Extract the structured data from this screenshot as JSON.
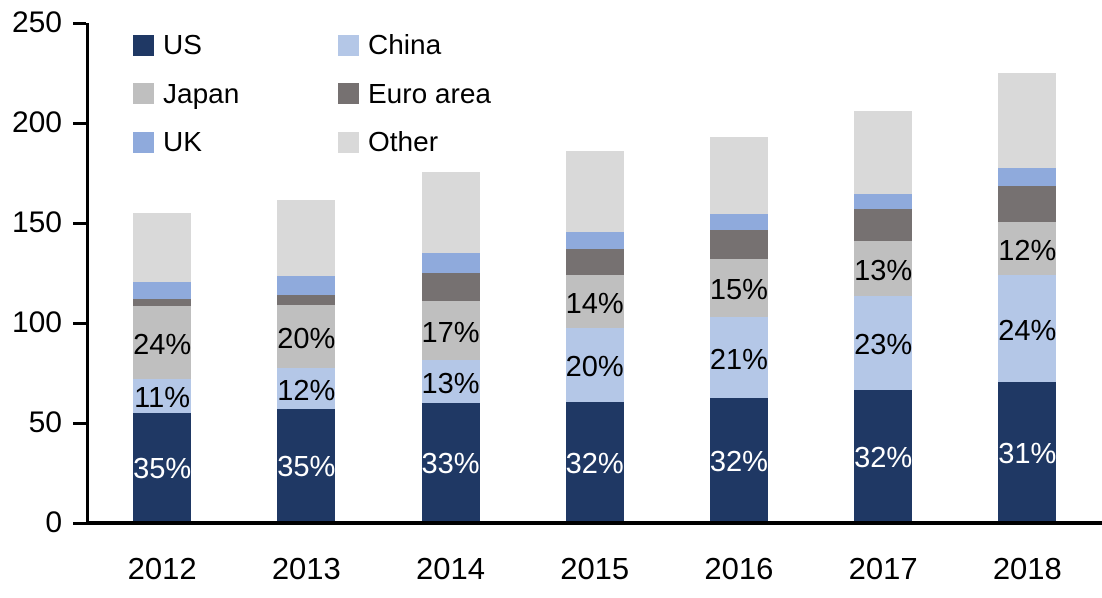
{
  "chart_data": {
    "type": "bar",
    "stacked": true,
    "title": "",
    "xlabel": "",
    "ylabel": "",
    "categories": [
      "2012",
      "2013",
      "2014",
      "2015",
      "2016",
      "2017",
      "2018"
    ],
    "ylim": [
      0,
      250
    ],
    "yticks": [
      "0",
      "50",
      "100",
      "150",
      "200",
      "250"
    ],
    "grid": false,
    "axis_color": "#000000",
    "series": [
      {
        "id": "us",
        "name": "US",
        "color": "#1F3864",
        "values": [
          54,
          56,
          59,
          59.5,
          61.5,
          65.5,
          69.5
        ],
        "labels": [
          "35%",
          "35%",
          "33%",
          "32%",
          "32%",
          "32%",
          "31%"
        ],
        "label_color": "#FFFFFF"
      },
      {
        "id": "china",
        "name": "China",
        "color": "#B4C7E7",
        "values": [
          17,
          20.5,
          21.5,
          37,
          40.5,
          47,
          53.5
        ],
        "labels": [
          "11%",
          "12%",
          "13%",
          "20%",
          "21%",
          "23%",
          "24%"
        ],
        "label_color": "#000000"
      },
      {
        "id": "japan",
        "name": "Japan",
        "color": "#BFBFBF",
        "values": [
          36.5,
          31.5,
          29.5,
          26.5,
          29,
          27.5,
          26.5
        ],
        "labels": [
          "24%",
          "20%",
          "17%",
          "14%",
          "15%",
          "13%",
          "12%"
        ],
        "label_color": "#000000"
      },
      {
        "id": "euro_area",
        "name": "Euro area",
        "color": "#767171",
        "values": [
          3.5,
          5,
          14,
          13,
          14.5,
          16,
          18
        ],
        "labels": null,
        "label_color": null
      },
      {
        "id": "uk",
        "name": "UK",
        "color": "#8FAADC",
        "values": [
          8.5,
          9.5,
          10,
          8.5,
          8,
          7.5,
          9
        ],
        "labels": null,
        "label_color": null
      },
      {
        "id": "other",
        "name": "Other",
        "color": "#D9D9D9",
        "values": [
          34.5,
          38,
          40.5,
          40.5,
          38.5,
          41.5,
          47.5
        ],
        "labels": null,
        "label_color": null
      }
    ],
    "totals": [
      154,
      160.5,
      174.5,
      185,
      192,
      205,
      224
    ],
    "legend": {
      "position": "top-left",
      "columns": [
        [
          "us",
          "japan",
          "uk"
        ],
        [
          "china",
          "euro_area",
          "other"
        ]
      ]
    }
  }
}
